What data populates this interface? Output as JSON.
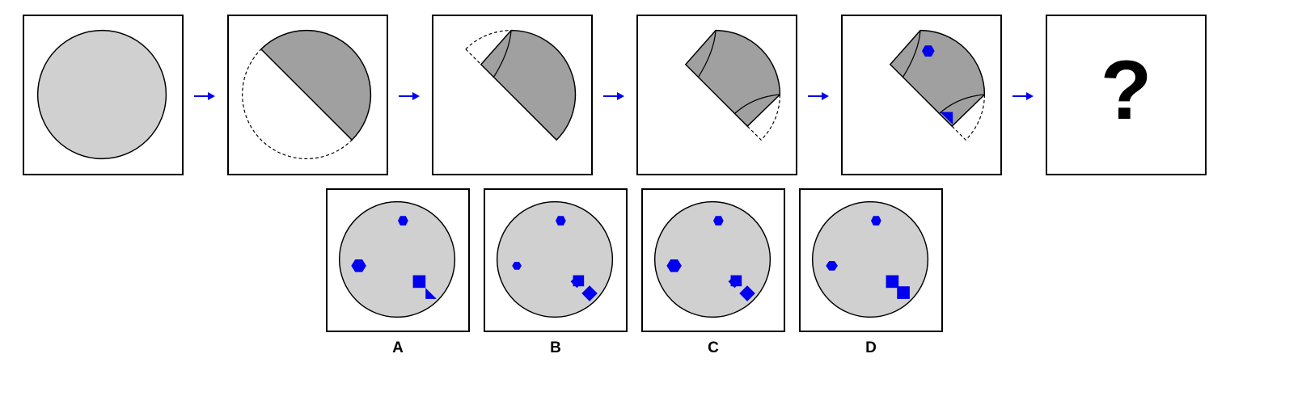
{
  "question_mark": "?",
  "options": [
    {
      "label": "A"
    },
    {
      "label": "B"
    },
    {
      "label": "C"
    },
    {
      "label": "D"
    }
  ],
  "colors": {
    "paper": "#d0d0d0",
    "folded": "#a0a0a0",
    "shape": "#0000ee",
    "arrow": "#0000ee",
    "line": "#000000"
  }
}
